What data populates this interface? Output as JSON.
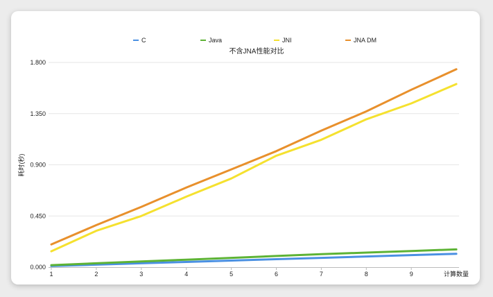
{
  "chart_data": {
    "type": "line",
    "title": "不含JNA性能对比",
    "xlabel": "计算数量",
    "ylabel": "耗时(秒)",
    "x": [
      1,
      2,
      3,
      4,
      5,
      6,
      7,
      8,
      9,
      10
    ],
    "x_tick_labels": [
      "1",
      "2",
      "3",
      "4",
      "5",
      "6",
      "7",
      "8",
      "9"
    ],
    "y_tick_labels": [
      "0.000",
      "0.450",
      "0.900",
      "1.350",
      "1.800"
    ],
    "ylim": [
      0,
      1.8
    ],
    "grid": true,
    "legend_position": "top",
    "series": [
      {
        "name": "C",
        "color": "#4a90e2",
        "values": [
          0.01,
          0.022,
          0.034,
          0.046,
          0.058,
          0.07,
          0.082,
          0.094,
          0.106,
          0.118
        ]
      },
      {
        "name": "Java",
        "color": "#5db335",
        "values": [
          0.018,
          0.034,
          0.05,
          0.066,
          0.082,
          0.098,
          0.114,
          0.128,
          0.142,
          0.156
        ]
      },
      {
        "name": "JNI",
        "color": "#f5e12f",
        "values": [
          0.14,
          0.32,
          0.45,
          0.62,
          0.78,
          0.98,
          1.12,
          1.3,
          1.44,
          1.61
        ]
      },
      {
        "name": "JNA DM",
        "color": "#e8902c",
        "values": [
          0.2,
          0.37,
          0.53,
          0.7,
          0.86,
          1.02,
          1.2,
          1.37,
          1.56,
          1.74
        ]
      }
    ]
  }
}
